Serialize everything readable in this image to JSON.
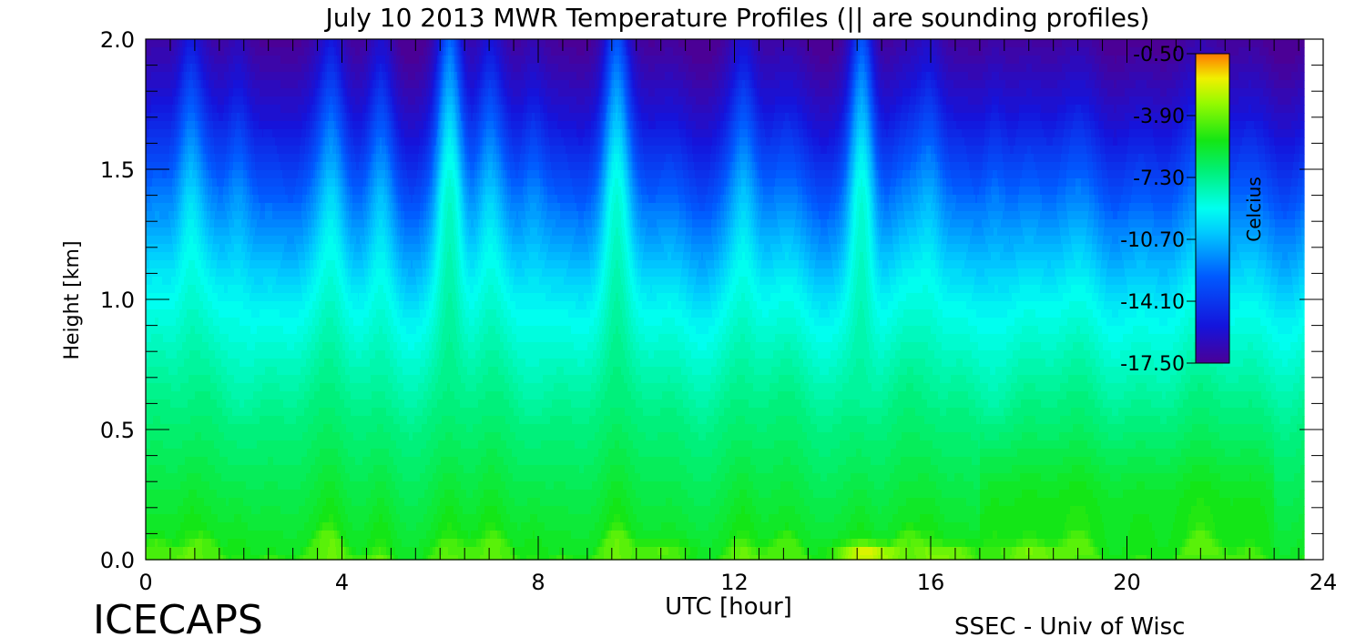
{
  "chart_data": {
    "type": "heatmap",
    "title": "July 10 2013 MWR Temperature Profiles (|| are sounding profiles)",
    "xlabel": "UTC [hour]",
    "ylabel": "Height [km]",
    "xlim": [
      0,
      24
    ],
    "ylim": [
      0,
      2.0
    ],
    "x_ticks": [
      0,
      4,
      8,
      12,
      16,
      20,
      24
    ],
    "x_tick_labels": [
      "0",
      "4",
      "8",
      "12",
      "16",
      "20",
      "24"
    ],
    "y_ticks": [
      0.0,
      0.5,
      1.0,
      1.5,
      2.0
    ],
    "y_tick_labels": [
      "0.0",
      "0.5",
      "1.0",
      "1.5",
      "2.0"
    ],
    "data_x_end": 23.6,
    "colorbar": {
      "label": "Celcius",
      "min": -17.5,
      "max": -0.5,
      "ticks": [
        -0.5,
        -3.9,
        -7.3,
        -10.7,
        -14.1,
        -17.5
      ],
      "tick_labels": [
        "-0.50",
        "-3.90",
        "-7.30",
        "-10.70",
        "-14.10",
        "-17.50"
      ]
    },
    "spikes": [
      {
        "x": 0.9,
        "amp": 0.9
      },
      {
        "x": 1.9,
        "amp": 0.7
      },
      {
        "x": 3.8,
        "amp": 0.7
      },
      {
        "x": 4.8,
        "amp": 0.75
      },
      {
        "x": 6.2,
        "amp": 1.7
      },
      {
        "x": 7.0,
        "amp": 0.7
      },
      {
        "x": 7.9,
        "amp": 0.6
      },
      {
        "x": 9.6,
        "amp": 1.4
      },
      {
        "x": 12.2,
        "amp": 0.7
      },
      {
        "x": 14.6,
        "amp": 1.8
      },
      {
        "x": 16.0,
        "amp": 0.6
      },
      {
        "x": 17.3,
        "amp": 0.5
      }
    ],
    "warm_spots": [
      {
        "x": 14.7,
        "y": 0.02,
        "temp": -1.5
      },
      {
        "x": 16.3,
        "y": 0.02,
        "temp": -3.5
      },
      {
        "x": 18.0,
        "y": 0.02,
        "temp": -3.8
      },
      {
        "x": 10.5,
        "y": 0.03,
        "temp": -4.2
      },
      {
        "x": 6.5,
        "y": 0.03,
        "temp": -4.5
      }
    ]
  },
  "footer": {
    "left_logo": "ICECAPS",
    "right_credit": "SSEC - Univ of Wisc"
  }
}
